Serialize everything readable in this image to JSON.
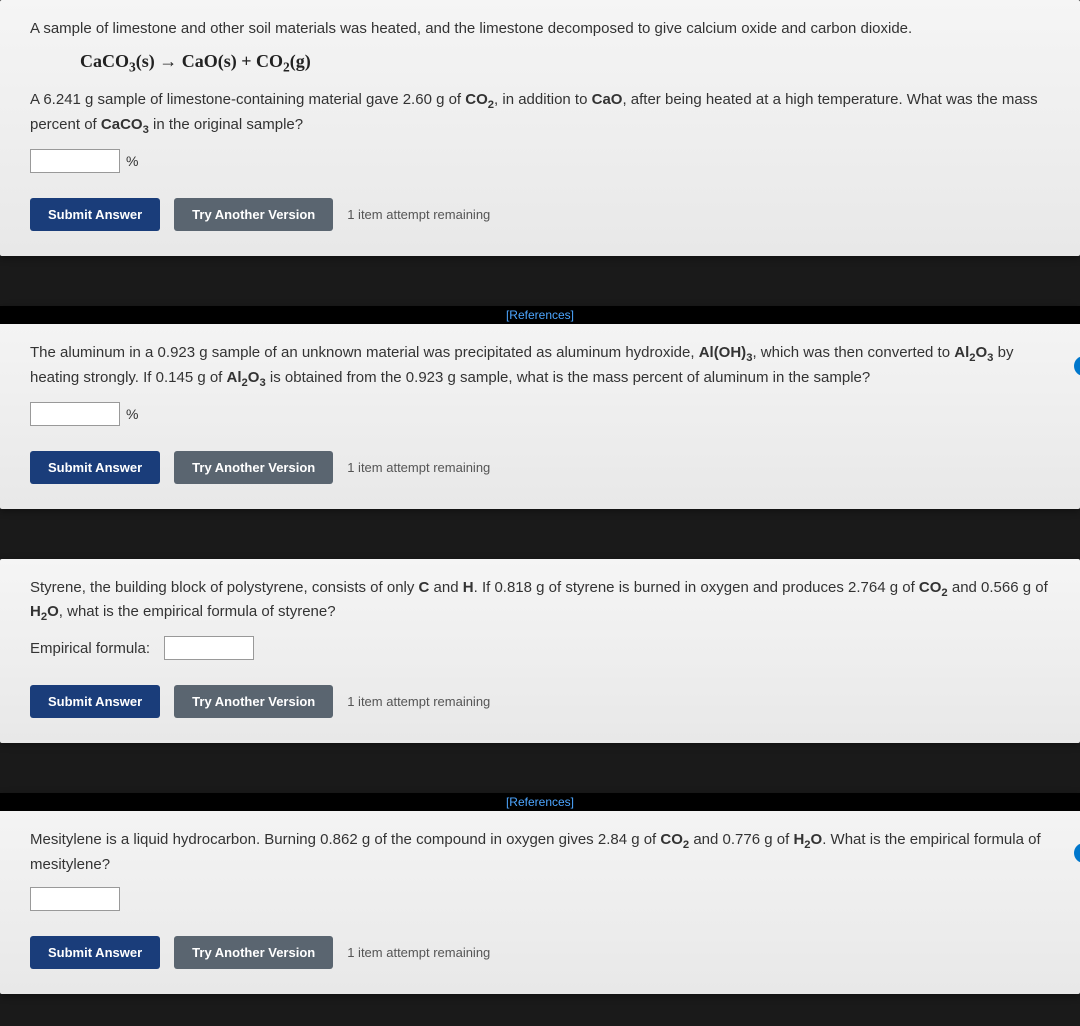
{
  "buttons": {
    "submit": "Submit Answer",
    "tryAnother": "Try Another Version"
  },
  "attemptsText": "1 item attempt remaining",
  "referencesLabel": "[References]",
  "percentUnit": "%",
  "q1": {
    "intro": "A sample of limestone and other soil materials was heated, and the limestone decomposed to give calcium oxide and carbon dioxide.",
    "equation_html": "CaCO<sub>3</sub>(s) → CaO(s) + CO<sub>2</sub>(g)",
    "body_html": "A 6.241 g sample of limestone-containing material gave 2.60 g of <b>CO<sub>2</sub></b>, in addition to <b>CaO</b>, after being heated at a high temperature. What was the mass percent of <b>CaCO<sub>3</sub></b> in the original sample?"
  },
  "q2": {
    "body_html": "The aluminum in a 0.923 g sample of an unknown material was precipitated as aluminum hydroxide, <b>Al(OH)<sub>3</sub></b>, which was then converted to <b>Al<sub>2</sub>O<sub>3</sub></b> by heating strongly. If 0.145 g of <b>Al<sub>2</sub>O<sub>3</sub></b> is obtained from the 0.923 g sample, what is the mass percent of aluminum in the sample?"
  },
  "q3": {
    "body_html": "Styrene, the building block of polystyrene, consists of only <b>C</b> and <b>H</b>. If 0.818 g of styrene is burned in oxygen and produces 2.764 g of <b>CO<sub>2</sub></b> and 0.566 g of <b>H<sub>2</sub>O</b>, what is the empirical formula of styrene?",
    "fieldLabel": "Empirical formula:"
  },
  "q4": {
    "body_html": "Mesitylene is a liquid hydrocarbon. Burning 0.862 g of the compound in oxygen gives 2.84 g of <b>CO<sub>2</sub></b> and 0.776 g of <b>H<sub>2</sub>O</b>. What is the empirical formula of mesitylene?"
  },
  "colors": {
    "submitBg": "#1a3d7a",
    "tryBg": "#5a6570",
    "panelBg": "#f0f0f0",
    "pageBg": "#1a1a1a",
    "refLink": "#4da6ff"
  }
}
